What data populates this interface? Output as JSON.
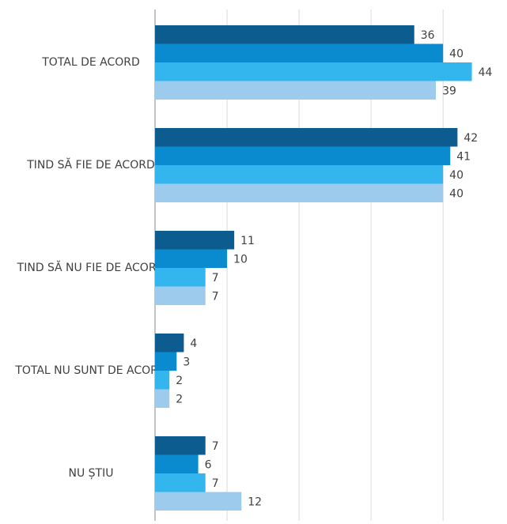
{
  "chart_data": {
    "type": "hbar",
    "categories": [
      "TOTAL DE ACORD",
      "TIND SĂ FIE DE ACORD",
      "TIND SĂ NU FIE DE ACORD",
      "TOTAL NU SUNT DE ACORD",
      "NU ȘTIU"
    ],
    "series": [
      {
        "color": "#0d5c8f",
        "values": [
          36,
          42,
          11,
          4,
          7
        ]
      },
      {
        "color": "#0a8bd0",
        "values": [
          40,
          41,
          10,
          3,
          6
        ]
      },
      {
        "color": "#33b6ee",
        "values": [
          44,
          40,
          7,
          2,
          7
        ]
      },
      {
        "color": "#9dcbed",
        "values": [
          39,
          40,
          7,
          2,
          12
        ]
      }
    ],
    "xlim": [
      0,
      48
    ],
    "xticks": [
      0,
      10,
      20,
      30,
      40
    ],
    "grid": true
  }
}
